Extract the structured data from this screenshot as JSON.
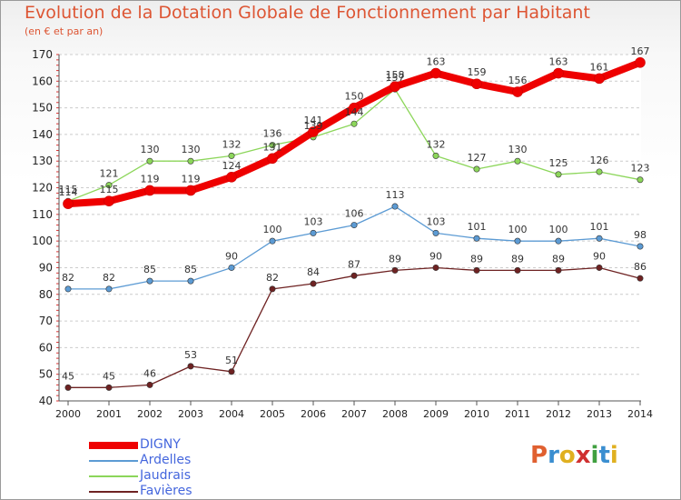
{
  "header": {
    "title": "Evolution de la Dotation Globale de Fonctionnement par Habitant",
    "subtitle": "(en € et par an)"
  },
  "logo": {
    "letters": [
      "P",
      "r",
      "o",
      "x",
      "i",
      "t",
      "i"
    ],
    "colors": [
      "#e06030",
      "#3a8ed0",
      "#e0b020",
      "#d03030",
      "#40a040",
      "#3a8ed0",
      "#e0b020"
    ]
  },
  "chart_data": {
    "type": "line",
    "title": "Evolution de la Dotation Globale de Fonctionnement par Habitant",
    "subtitle": "(en € et par an)",
    "x": [
      "2000",
      "2001",
      "2002",
      "2003",
      "2004",
      "2005",
      "2006",
      "2007",
      "2008",
      "2009",
      "2010",
      "2011",
      "2012",
      "2013",
      "2014"
    ],
    "yticks": [
      "40",
      "50",
      "60",
      "70",
      "80",
      "90",
      "100",
      "110",
      "120",
      "130",
      "140",
      "150",
      "160",
      "170"
    ],
    "ylim": [
      40,
      170
    ],
    "grid": "horizontal dashed",
    "legend_position": "bottom-left",
    "series": [
      {
        "name": "Favières",
        "color": "#6e2222",
        "values": [
          45,
          45,
          46,
          53,
          51,
          82,
          84,
          87,
          89,
          90,
          89,
          89,
          89,
          90,
          86
        ]
      },
      {
        "name": "Ardelles",
        "color": "#5c9bd4",
        "values": [
          82,
          82,
          85,
          85,
          90,
          100,
          103,
          106,
          113,
          103,
          101,
          100,
          100,
          101,
          98
        ]
      },
      {
        "name": "Jaudrais",
        "color": "#8cd65a",
        "values": [
          115,
          121,
          130,
          130,
          132,
          136,
          139,
          144,
          157,
          132,
          127,
          130,
          125,
          126,
          123
        ]
      },
      {
        "name": "DIGNY",
        "color": "#ee0000",
        "values": [
          114,
          115,
          119,
          119,
          124,
          131,
          141,
          150,
          158,
          163,
          159,
          156,
          163,
          161,
          167
        ]
      }
    ],
    "legend": [
      "DIGNY",
      "Ardelles",
      "Jaudrais",
      "Favières"
    ]
  }
}
